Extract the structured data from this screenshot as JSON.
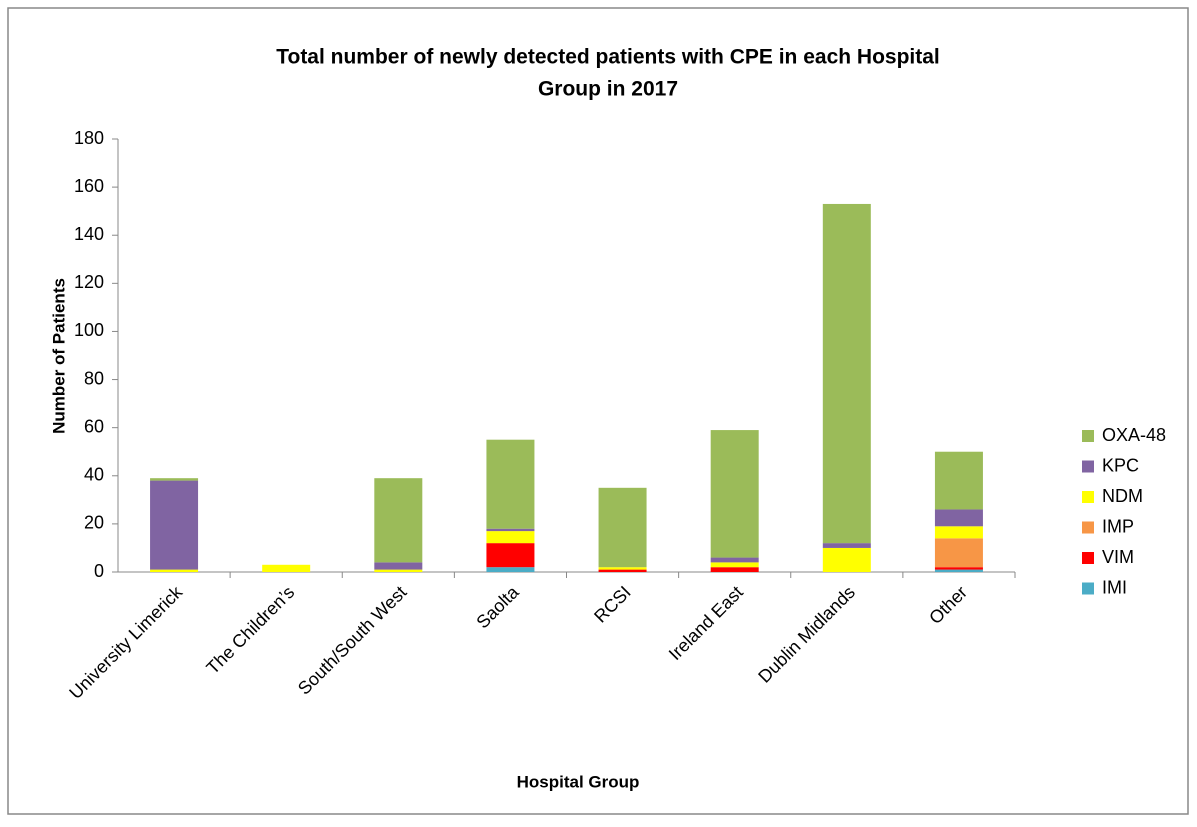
{
  "chart_data": {
    "type": "stacked_bar",
    "title": [
      "Total number of newly detected patients with CPE in each Hospital",
      "Group in 2017"
    ],
    "x_label": "Hospital Group",
    "y_label": "Number of Patients",
    "categories": [
      "University Limerick",
      "The Children’s",
      "South/South West",
      "Saolta",
      "RCSI",
      "Ireland East",
      "Dublin Midlands",
      "Other"
    ],
    "series": [
      {
        "name": "IMI",
        "color": "#4bacc6",
        "values": [
          0,
          0,
          0,
          2,
          0,
          0,
          0,
          1
        ]
      },
      {
        "name": "VIM",
        "color": "#ff0000",
        "values": [
          0,
          0,
          0,
          10,
          1,
          2,
          0,
          1
        ]
      },
      {
        "name": "IMP",
        "color": "#f79646",
        "values": [
          0,
          0,
          0,
          0,
          0,
          0,
          0,
          12
        ]
      },
      {
        "name": "NDM",
        "color": "#ffff00",
        "values": [
          1,
          3,
          1,
          5,
          1,
          2,
          10,
          5
        ]
      },
      {
        "name": "KPC",
        "color": "#8064a2",
        "values": [
          37,
          0,
          3,
          1,
          0,
          2,
          2,
          7
        ]
      },
      {
        "name": "OXA-48",
        "color": "#9bbb59",
        "values": [
          1,
          0,
          35,
          37,
          33,
          53,
          141,
          24
        ]
      }
    ],
    "ylim": [
      0,
      180
    ],
    "yticks": [
      0,
      20,
      40,
      60,
      80,
      100,
      120,
      140,
      160,
      180
    ],
    "legend": "right"
  }
}
